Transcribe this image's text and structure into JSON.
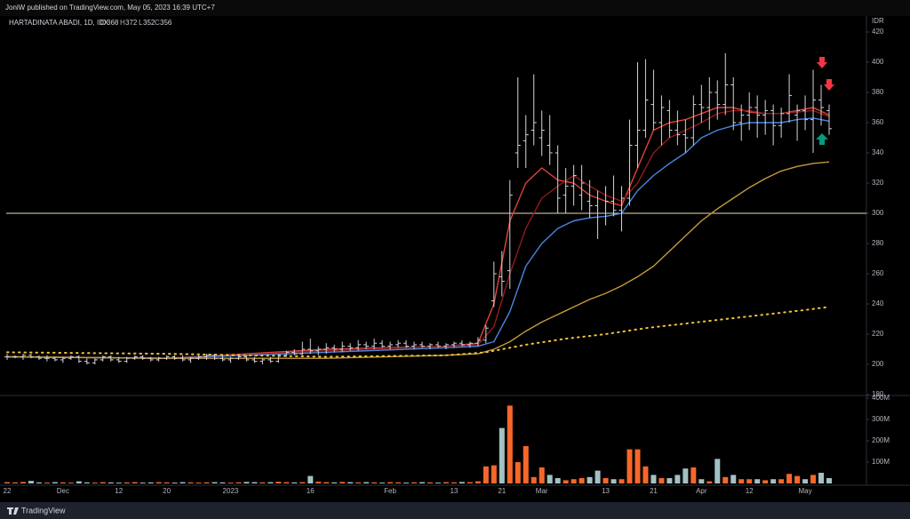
{
  "header": {
    "published": "JoniW published on TradingView.com, May 05, 2023 16:39 UTC+7"
  },
  "footer": {
    "brand": "TradingView"
  },
  "chart_data": {
    "type": "ohlc",
    "title": "HARTADINATA ABADI, 1D, IDX",
    "ohlc_labels": [
      "O",
      "H",
      "L",
      "C"
    ],
    "currency": "IDR",
    "bar_color": "#d1d4dc",
    "categories": [
      "22",
      null,
      null,
      null,
      null,
      null,
      null,
      "Dec",
      null,
      null,
      null,
      null,
      null,
      null,
      "12",
      null,
      null,
      null,
      null,
      null,
      "20",
      null,
      null,
      null,
      null,
      null,
      null,
      null,
      "2023",
      null,
      null,
      null,
      null,
      null,
      null,
      null,
      null,
      null,
      "16",
      null,
      null,
      null,
      null,
      null,
      null,
      null,
      null,
      null,
      "Feb",
      null,
      null,
      null,
      null,
      null,
      null,
      null,
      "13",
      null,
      null,
      null,
      null,
      null,
      "21",
      null,
      null,
      null,
      null,
      "Mar",
      null,
      null,
      null,
      null,
      null,
      null,
      null,
      "13",
      null,
      null,
      null,
      null,
      null,
      "21",
      null,
      null,
      null,
      null,
      null,
      "Apr",
      null,
      null,
      null,
      null,
      null,
      "12",
      null,
      null,
      null,
      null,
      null,
      null,
      "May",
      null,
      null,
      null
    ],
    "open": [
      205,
      205,
      205,
      206,
      205,
      204,
      204,
      203,
      204,
      205,
      202,
      201,
      203,
      205,
      203,
      202,
      204,
      205,
      204,
      203,
      204,
      205,
      204,
      203,
      204,
      205,
      206,
      204,
      203,
      204,
      205,
      203,
      202,
      203,
      202,
      206,
      208,
      207,
      210,
      209,
      210,
      211,
      210,
      212,
      211,
      213,
      212,
      214,
      212,
      213,
      214,
      212,
      213,
      212,
      213,
      212,
      213,
      214,
      213,
      214,
      216,
      242,
      258,
      262,
      340,
      348,
      355,
      350,
      345,
      340,
      312,
      318,
      312,
      308,
      305,
      300,
      308,
      302,
      310,
      345,
      355,
      372,
      360,
      368,
      355,
      352,
      350,
      372,
      370,
      380,
      372,
      385,
      360,
      365,
      370,
      365,
      368,
      358,
      366,
      365,
      368,
      362,
      375,
      368
    ],
    "high": [
      207,
      206,
      207,
      207,
      206,
      206,
      205,
      205,
      206,
      206,
      204,
      204,
      206,
      206,
      205,
      205,
      206,
      206,
      205,
      205,
      206,
      206,
      206,
      205,
      206,
      207,
      207,
      206,
      205,
      206,
      206,
      205,
      204,
      205,
      207,
      209,
      210,
      215,
      217,
      212,
      214,
      213,
      215,
      214,
      216,
      215,
      217,
      216,
      215,
      216,
      216,
      215,
      215,
      214,
      215,
      214,
      215,
      216,
      215,
      218,
      226,
      268,
      275,
      322,
      390,
      365,
      392,
      368,
      365,
      345,
      330,
      332,
      332,
      322,
      315,
      318,
      325,
      318,
      362,
      400,
      402,
      395,
      378,
      375,
      368,
      362,
      378,
      385,
      390,
      388,
      406,
      390,
      372,
      380,
      378,
      375,
      372,
      370,
      392,
      372,
      378,
      395,
      385,
      372
    ],
    "low": [
      203,
      204,
      203,
      204,
      203,
      202,
      202,
      201,
      203,
      201,
      200,
      200,
      202,
      202,
      201,
      201,
      203,
      203,
      202,
      202,
      203,
      203,
      202,
      201,
      203,
      203,
      203,
      202,
      201,
      203,
      202,
      201,
      200,
      201,
      201,
      205,
      206,
      206,
      207,
      206,
      207,
      208,
      208,
      209,
      209,
      210,
      210,
      211,
      210,
      211,
      211,
      210,
      211,
      210,
      211,
      210,
      211,
      212,
      211,
      212,
      214,
      238,
      245,
      250,
      330,
      330,
      345,
      338,
      332,
      300,
      300,
      305,
      302,
      297,
      283,
      292,
      298,
      288,
      305,
      330,
      350,
      355,
      345,
      350,
      345,
      340,
      345,
      360,
      355,
      362,
      365,
      355,
      348,
      355,
      350,
      352,
      345,
      350,
      360,
      348,
      355,
      340,
      358,
      352
    ],
    "close": [
      205,
      205,
      206,
      205,
      204,
      204,
      203,
      204,
      205,
      202,
      201,
      203,
      205,
      203,
      202,
      204,
      205,
      204,
      203,
      204,
      205,
      204,
      203,
      204,
      205,
      206,
      204,
      203,
      204,
      205,
      203,
      202,
      203,
      202,
      206,
      208,
      207,
      210,
      209,
      210,
      211,
      210,
      212,
      211,
      213,
      212,
      214,
      212,
      213,
      214,
      212,
      213,
      212,
      213,
      212,
      213,
      214,
      213,
      214,
      216,
      224,
      260,
      255,
      312,
      345,
      352,
      360,
      355,
      340,
      310,
      318,
      325,
      320,
      305,
      300,
      308,
      302,
      310,
      345,
      355,
      375,
      360,
      370,
      355,
      352,
      350,
      372,
      370,
      380,
      372,
      385,
      360,
      365,
      370,
      365,
      368,
      358,
      366,
      378,
      368,
      362,
      375,
      370,
      356
    ],
    "volume": [
      6000000,
      5000000,
      7000000,
      12000000,
      5000000,
      4000000,
      6000000,
      5000000,
      4000000,
      10000000,
      5000000,
      4000000,
      6000000,
      5000000,
      4000000,
      5000000,
      6000000,
      4000000,
      5000000,
      6000000,
      5000000,
      4000000,
      6000000,
      5000000,
      4000000,
      5000000,
      6000000,
      5000000,
      4000000,
      5000000,
      7000000,
      6000000,
      5000000,
      6000000,
      8000000,
      6000000,
      5000000,
      6000000,
      35000000,
      8000000,
      6000000,
      5000000,
      7000000,
      6000000,
      5000000,
      6000000,
      5000000,
      4000000,
      6000000,
      5000000,
      4000000,
      5000000,
      6000000,
      5000000,
      4000000,
      6000000,
      5000000,
      7000000,
      6000000,
      10000000,
      80000000,
      85000000,
      260000000,
      365000000,
      100000000,
      175000000,
      30000000,
      75000000,
      40000000,
      25000000,
      15000000,
      20000000,
      25000000,
      30000000,
      60000000,
      25000000,
      20000000,
      20000000,
      160000000,
      160000000,
      80000000,
      40000000,
      25000000,
      25000000,
      40000000,
      70000000,
      75000000,
      20000000,
      10000000,
      115000000,
      30000000,
      40000000,
      20000000,
      20000000,
      20000000,
      15000000,
      20000000,
      20000000,
      45000000,
      35000000,
      20000000,
      40000000,
      50000000,
      25000000
    ],
    "volume_up_color": "#f7672a",
    "volume_down_color": "#a3c1c4",
    "ylim": [
      180,
      420
    ],
    "yticks": [
      180,
      200,
      220,
      240,
      260,
      280,
      300,
      320,
      340,
      360,
      380,
      400,
      420
    ],
    "volume_ylim": [
      0,
      400000000
    ],
    "volume_yticks": [
      {
        "value": 100000000,
        "label": "100M"
      },
      {
        "value": 200000000,
        "label": "200M"
      },
      {
        "value": 300000000,
        "label": "300M"
      },
      {
        "value": 400000000,
        "label": "400M"
      }
    ],
    "hline": 300,
    "hline_color": "#e8dcb5",
    "lines": [
      {
        "color": "#e0433a",
        "style": "solid",
        "x": [
          0,
          20,
          40,
          55,
          59,
          61,
          63,
          65,
          67,
          69,
          71,
          73,
          75,
          77,
          79,
          81,
          83,
          85,
          87,
          89,
          91,
          93,
          95,
          97,
          99,
          101,
          103
        ],
        "values": [
          205,
          204,
          210,
          212,
          214,
          240,
          295,
          320,
          330,
          322,
          320,
          312,
          308,
          305,
          330,
          355,
          360,
          362,
          366,
          370,
          370,
          367,
          366,
          366,
          368,
          370,
          365
        ]
      },
      {
        "color": "#8e1b1b",
        "style": "solid",
        "x": [
          0,
          20,
          40,
          55,
          59,
          61,
          63,
          65,
          67,
          69,
          71,
          73,
          75,
          77,
          79,
          81,
          83,
          85,
          87,
          89,
          91,
          93,
          95,
          97,
          99,
          101,
          103
        ],
        "values": [
          205,
          204,
          209,
          212,
          213,
          225,
          260,
          290,
          310,
          318,
          325,
          318,
          312,
          308,
          320,
          340,
          350,
          355,
          360,
          366,
          368,
          368,
          366,
          366,
          367,
          368,
          364
        ]
      },
      {
        "color": "#4a86e0",
        "style": "solid",
        "x": [
          0,
          20,
          40,
          55,
          59,
          61,
          63,
          65,
          67,
          69,
          71,
          73,
          75,
          77,
          79,
          81,
          83,
          85,
          87,
          89,
          91,
          93,
          95,
          97,
          99,
          101,
          103
        ],
        "values": [
          205,
          204,
          208,
          211,
          212,
          215,
          235,
          265,
          280,
          290,
          295,
          297,
          298,
          300,
          315,
          325,
          333,
          340,
          350,
          355,
          358,
          360,
          360,
          360,
          362,
          363,
          361
        ]
      },
      {
        "color": "#c49a3a",
        "style": "solid",
        "x": [
          0,
          20,
          40,
          55,
          59,
          61,
          63,
          65,
          67,
          69,
          71,
          73,
          75,
          77,
          79,
          81,
          83,
          85,
          87,
          89,
          91,
          93,
          95,
          97,
          99,
          101,
          103
        ],
        "values": [
          205,
          204,
          204,
          206,
          207,
          210,
          215,
          222,
          228,
          233,
          238,
          243,
          247,
          252,
          258,
          265,
          275,
          285,
          295,
          303,
          310,
          317,
          323,
          328,
          331,
          333,
          334
        ]
      },
      {
        "color": "#f0c23a",
        "style": "dotted",
        "x": [
          0,
          20,
          40,
          55,
          60,
          65,
          70,
          75,
          80,
          85,
          90,
          95,
          100,
          103
        ],
        "values": [
          208,
          207,
          205,
          206,
          208,
          213,
          217,
          220,
          224,
          227,
          230,
          233,
          236,
          238
        ]
      }
    ]
  }
}
